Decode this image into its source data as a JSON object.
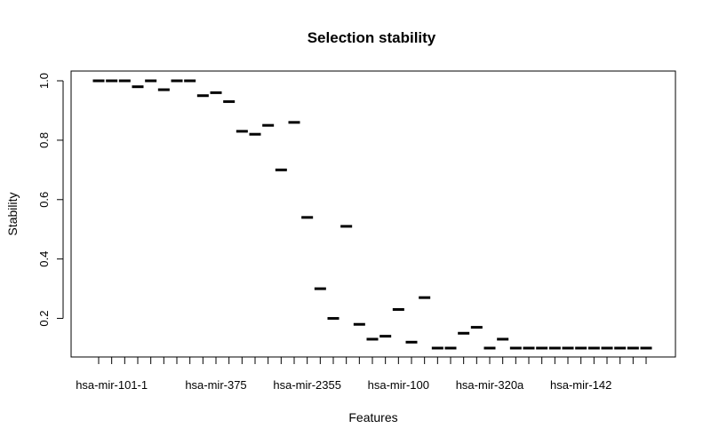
{
  "chart_data": {
    "type": "scatter",
    "title": "Selection stability",
    "xlabel": "Features",
    "ylabel": "Stability",
    "ylim": [
      0.07,
      1.03
    ],
    "yticks": [
      0.2,
      0.4,
      0.6,
      0.8,
      1.0
    ],
    "ytick_labels": [
      "0.2",
      "0.4",
      "0.6",
      "0.8",
      "1.0"
    ],
    "xtick_labels": [
      {
        "index": 2,
        "label": "hsa-mir-101-1"
      },
      {
        "index": 10,
        "label": "hsa-mir-375"
      },
      {
        "index": 17,
        "label": "hsa-mir-2355"
      },
      {
        "index": 24,
        "label": "hsa-mir-100"
      },
      {
        "index": 31,
        "label": "hsa-mir-320a"
      },
      {
        "index": 38,
        "label": "hsa-mir-142"
      }
    ],
    "x": [
      1,
      2,
      3,
      4,
      5,
      6,
      7,
      8,
      9,
      10,
      11,
      12,
      13,
      14,
      15,
      16,
      17,
      18,
      19,
      20,
      21,
      22,
      23,
      24,
      25,
      26,
      27,
      28,
      29,
      30,
      31,
      32,
      33,
      34,
      35,
      36,
      37,
      38,
      39,
      40,
      41,
      42,
      43
    ],
    "values": [
      1.0,
      1.0,
      1.0,
      0.98,
      1.0,
      0.97,
      1.0,
      1.0,
      0.95,
      0.96,
      0.93,
      0.83,
      0.82,
      0.85,
      0.7,
      0.86,
      0.54,
      0.3,
      0.2,
      0.51,
      0.18,
      0.13,
      0.14,
      0.23,
      0.12,
      0.27,
      0.1,
      0.1,
      0.15,
      0.17,
      0.1,
      0.13,
      0.1,
      0.1,
      0.1,
      0.1,
      0.1,
      0.1,
      0.1,
      0.1,
      0.1,
      0.1,
      0.1
    ],
    "marker": "short horizontal dash",
    "grid": false,
    "legend": "none"
  }
}
